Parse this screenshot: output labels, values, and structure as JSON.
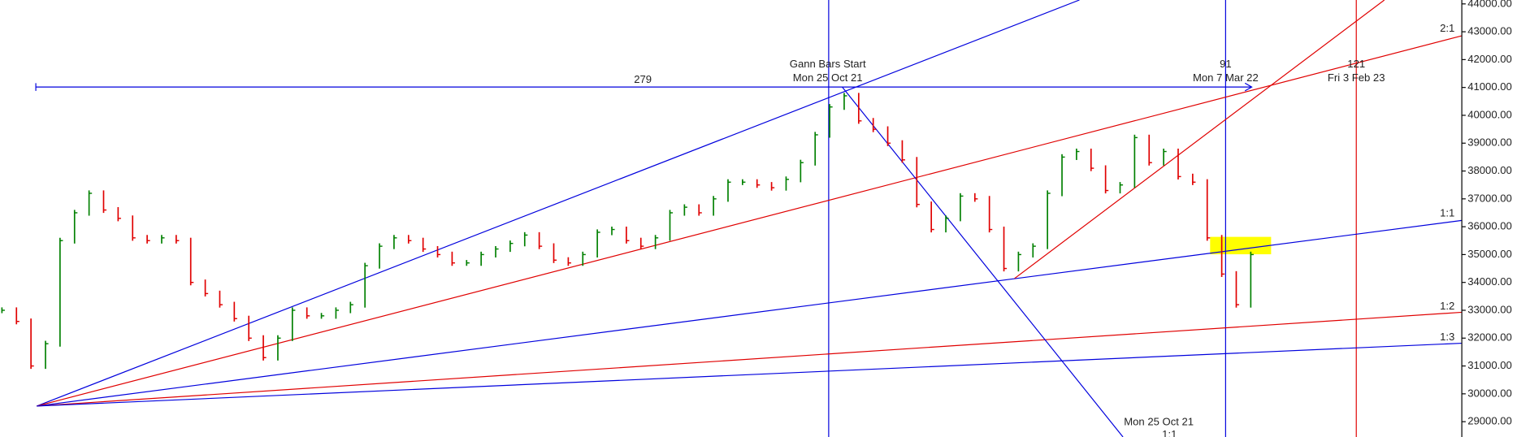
{
  "chart_data": {
    "type": "price-bars",
    "up_color": "#008000",
    "down_color": "#e00000",
    "values": [
      33000,
      32600,
      31000,
      31800,
      35500,
      36500,
      37200,
      36600,
      36300,
      35600,
      35500,
      35600,
      35500,
      34000,
      33600,
      33200,
      32700,
      32000,
      31300,
      32000,
      33000,
      32800,
      32800,
      33000,
      33200,
      34600,
      35300,
      35600,
      35500,
      35200,
      35000,
      34700,
      34700,
      35000,
      35200,
      35400,
      35700,
      35300,
      34800,
      34700,
      35000,
      35800,
      35900,
      35500,
      35300,
      35600,
      36500,
      36700,
      36500,
      37000,
      37600,
      37600,
      37500,
      37400,
      37700,
      38300,
      39300,
      40300,
      40700,
      39800,
      39500,
      39000,
      38400,
      36800,
      35900,
      36300,
      37100,
      37000,
      35900,
      34500,
      35000,
      35300,
      37200,
      38500,
      38700,
      38100,
      37300,
      37500,
      39200,
      38300,
      38700,
      37800,
      37600,
      35600,
      34300,
      33200,
      35000
    ],
    "ylim": [
      28450,
      44140
    ],
    "yticks": [
      {
        "value": 29000,
        "label": "29000.00"
      },
      {
        "value": 30000,
        "label": "30000.00"
      },
      {
        "value": 31000,
        "label": "31000.00"
      },
      {
        "value": 32000,
        "label": "32000.00"
      },
      {
        "value": 33000,
        "label": "33000.00"
      },
      {
        "value": 34000,
        "label": "34000.00"
      },
      {
        "value": 35000,
        "label": "35000.00"
      },
      {
        "value": 36000,
        "label": "36000.00"
      },
      {
        "value": 37000,
        "label": "37000.00"
      },
      {
        "value": 38000,
        "label": "38000.00"
      },
      {
        "value": 39000,
        "label": "39000.00"
      },
      {
        "value": 40000,
        "label": "40000.00"
      },
      {
        "value": 41000,
        "label": "41000.00"
      },
      {
        "value": 42000,
        "label": "42000.00"
      },
      {
        "value": 43000,
        "label": "43000.00"
      },
      {
        "value": 44000,
        "label": "44000.00"
      }
    ],
    "annotations": [
      "279",
      "Gann Bars Start",
      "Mon 25 Oct 21",
      "91",
      "Mon 7 Mar 22",
      "121",
      "Fri 3 Feb 23",
      "2:1",
      "1:1",
      "1:2",
      "1:3",
      "Mon 25 Oct 21",
      "1:1"
    ]
  }
}
